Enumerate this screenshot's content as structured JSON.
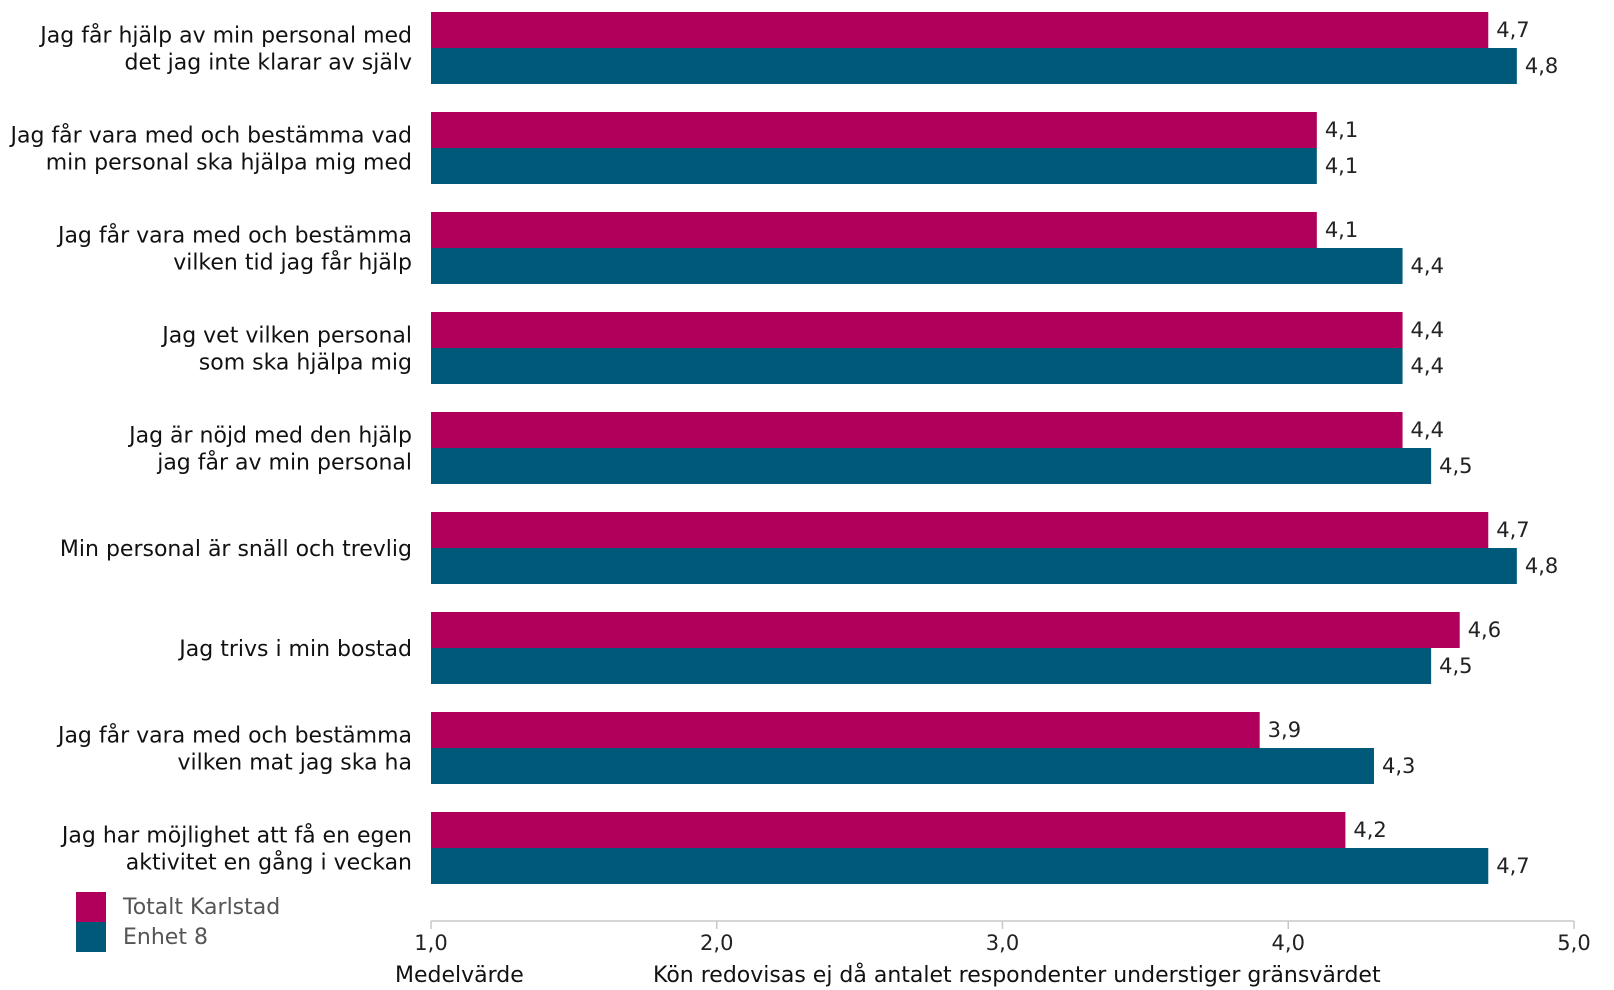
{
  "chart_data": {
    "type": "bar",
    "orientation": "horizontal",
    "categories": [
      [
        "Jag får hjälp av min personal med",
        "det jag inte klarar av själv"
      ],
      [
        "Jag får vara med och bestämma vad",
        "min personal ska hjälpa mig med"
      ],
      [
        "Jag får vara med och bestämma",
        "vilken tid jag får hjälp"
      ],
      [
        "Jag vet vilken personal",
        "som ska hjälpa mig"
      ],
      [
        "Jag är nöjd med den hjälp",
        "jag får av min personal"
      ],
      [
        "Min personal är snäll och trevlig"
      ],
      [
        "Jag trivs i min bostad"
      ],
      [
        "Jag får vara med och bestämma",
        "vilken mat jag ska ha"
      ],
      [
        "Jag har möjlighet att få en egen",
        "aktivitet en gång i veckan"
      ]
    ],
    "series": [
      {
        "name": "Totalt Karlstad",
        "color": "#b0005c",
        "values": [
          4.7,
          4.1,
          4.1,
          4.4,
          4.4,
          4.7,
          4.6,
          3.9,
          4.2
        ],
        "labels": [
          "4,7",
          "4,1",
          "4,1",
          "4,4",
          "4,4",
          "4,7",
          "4,6",
          "3,9",
          "4,2"
        ]
      },
      {
        "name": "Enhet 8",
        "color": "#005978",
        "values": [
          4.8,
          4.1,
          4.4,
          4.4,
          4.5,
          4.8,
          4.5,
          4.3,
          4.7
        ],
        "labels": [
          "4,8",
          "4,1",
          "4,4",
          "4,4",
          "4,5",
          "4,8",
          "4,5",
          "4,3",
          "4,7"
        ]
      }
    ],
    "xlim": [
      1.0,
      5.0
    ],
    "xticks": [
      1.0,
      2.0,
      3.0,
      4.0,
      5.0
    ],
    "xtick_labels": [
      "1,0",
      "2,0",
      "3,0",
      "4,0",
      "5,0"
    ],
    "xlabel": "Medelvärde",
    "note": "Kön redovisas ej då antalet respondenter understiger gränsvärdet",
    "legend_position": "bottom-left",
    "grid": false
  }
}
